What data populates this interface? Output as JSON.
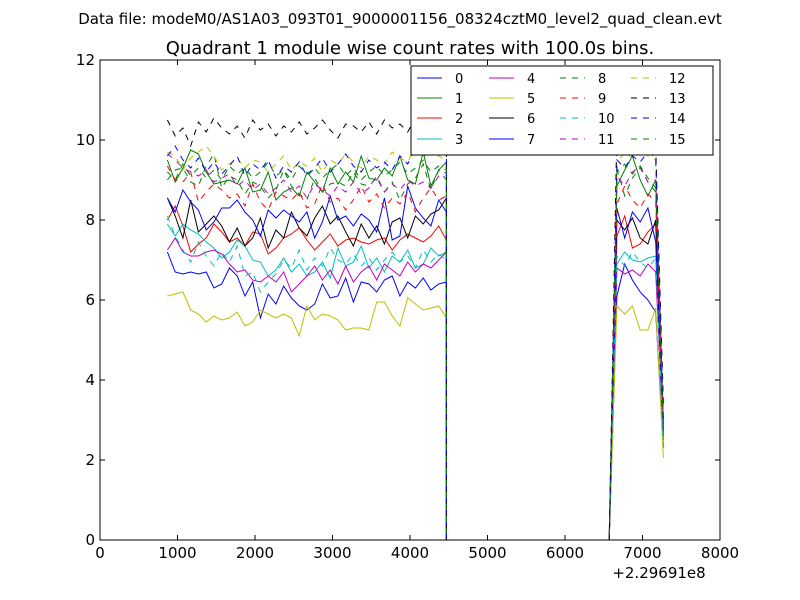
{
  "figure": {
    "suptitle": "Data file: modeM0/AS1A03_093T01_9000001156_08324cztM0_level2_quad_clean.evt"
  },
  "chart_data": {
    "type": "line",
    "title": "Quadrant 1 module wise count rates with 100.0s bins.",
    "xlabel": "",
    "ylabel": "",
    "x_offset_label": "+2.29691e8",
    "xlim": [
      0,
      8000
    ],
    "ylim": [
      0,
      12
    ],
    "xticks": [
      0,
      1000,
      2000,
      3000,
      4000,
      5000,
      6000,
      7000,
      8000
    ],
    "yticks": [
      0,
      2,
      4,
      6,
      8,
      10,
      12
    ],
    "grid": false,
    "legend": {
      "placement": "top-right",
      "columns": 4
    },
    "x_segments": [
      {
        "start": 870,
        "step": 100,
        "count": 37
      },
      {
        "start": 4470,
        "step": 100,
        "count": 22
      },
      {
        "start": 6670,
        "step": 100,
        "count": 7
      }
    ],
    "series": [
      {
        "name": "0",
        "color": "#0000ff",
        "dash": "solid",
        "seg1": [
          7.2,
          6.7,
          6.65,
          6.7,
          6.65,
          6.7,
          6.3,
          6.4,
          6.8,
          6.6,
          6.1,
          6.45,
          5.55,
          6.15,
          5.9,
          6.35,
          6.05,
          5.85,
          5.75,
          5.9,
          6.4,
          6.05,
          6.1,
          6.55,
          5.95,
          6.45,
          6.4,
          6.2,
          6.5,
          6.6,
          6.1,
          6.45,
          6.3,
          6.55,
          6.25,
          6.4,
          6.45
        ],
        "seg2": [
          6.1,
          6.9,
          6.5,
          6.2,
          6.0,
          5.7,
          2.3
        ]
      },
      {
        "name": "1",
        "color": "#008000",
        "dash": "solid",
        "seg1": [
          9.5,
          8.95,
          9.3,
          9.75,
          9.65,
          9.2,
          8.9,
          8.95,
          9.0,
          8.9,
          9.3,
          8.7,
          8.75,
          9.2,
          8.5,
          8.7,
          8.8,
          8.6,
          9.2,
          8.95,
          8.7,
          9.3,
          8.9,
          9.2,
          8.95,
          9.6,
          9.05,
          9.0,
          9.3,
          9.1,
          9.6,
          9.0,
          8.9,
          9.7,
          8.85,
          9.25,
          9.45
        ],
        "seg2": [
          8.85,
          9.25,
          9.6,
          9.0,
          8.6,
          9.0,
          3.0
        ]
      },
      {
        "name": "2",
        "color": "#ff0000",
        "dash": "solid",
        "seg1": [
          8.0,
          8.35,
          7.85,
          7.2,
          7.4,
          7.55,
          7.9,
          7.7,
          7.45,
          7.55,
          7.35,
          7.7,
          7.65,
          7.15,
          7.3,
          7.55,
          7.65,
          7.8,
          7.5,
          7.25,
          7.45,
          7.65,
          7.35,
          7.5,
          7.55,
          7.45,
          7.4,
          7.5,
          7.55,
          7.25,
          7.5,
          7.65,
          7.55,
          7.45,
          7.6,
          7.85,
          7.5
        ],
        "seg2": [
          7.6,
          8.1,
          7.3,
          7.4,
          7.7,
          7.9,
          2.5
        ]
      },
      {
        "name": "3",
        "color": "#00bfbf",
        "dash": "solid",
        "seg1": [
          7.9,
          7.6,
          7.9,
          7.75,
          7.65,
          7.45,
          7.3,
          7.05,
          7.2,
          7.5,
          7.35,
          7.0,
          6.95,
          6.6,
          6.75,
          7.05,
          6.7,
          6.9,
          6.6,
          6.7,
          6.95,
          6.55,
          7.3,
          6.85,
          6.95,
          7.35,
          6.8,
          7.05,
          6.7,
          7.1,
          6.95,
          7.25,
          6.8,
          6.9,
          7.3,
          7.1,
          7.2
        ],
        "seg2": [
          6.9,
          7.2,
          7.0,
          6.95,
          7.05,
          7.1,
          2.3
        ]
      },
      {
        "name": "4",
        "color": "#bf00bf",
        "dash": "solid",
        "seg1": [
          7.25,
          7.55,
          7.2,
          7.1,
          7.1,
          7.2,
          7.25,
          7.15,
          6.9,
          6.7,
          6.75,
          6.5,
          6.45,
          6.6,
          6.45,
          6.7,
          6.2,
          6.4,
          6.6,
          6.85,
          6.5,
          6.75,
          6.4,
          6.85,
          6.45,
          6.7,
          6.85,
          6.5,
          6.9,
          6.75,
          6.6,
          6.95,
          6.7,
          6.9,
          6.8,
          7.0,
          7.2
        ],
        "seg2": [
          6.8,
          6.65,
          6.75,
          6.6,
          6.9,
          6.7,
          2.6
        ]
      },
      {
        "name": "5",
        "color": "#bfbf00",
        "dash": "solid",
        "seg1": [
          6.1,
          6.15,
          6.2,
          5.75,
          5.65,
          5.45,
          5.6,
          5.5,
          5.55,
          5.7,
          5.35,
          5.45,
          5.75,
          5.65,
          5.55,
          5.65,
          5.55,
          5.1,
          5.85,
          5.5,
          5.65,
          5.6,
          5.5,
          5.25,
          5.3,
          5.3,
          5.25,
          5.95,
          5.95,
          5.6,
          5.35,
          6.05,
          5.9,
          5.75,
          5.8,
          5.85,
          5.55
        ],
        "seg2": [
          5.85,
          5.65,
          5.85,
          5.25,
          5.25,
          5.8,
          2.05
        ]
      },
      {
        "name": "6",
        "color": "#000000",
        "dash": "solid",
        "seg1": [
          8.55,
          8.1,
          7.55,
          8.5,
          7.7,
          7.9,
          8.1,
          7.85,
          7.45,
          7.8,
          7.35,
          7.55,
          8.05,
          7.3,
          7.75,
          7.55,
          8.2,
          7.8,
          7.6,
          8.05,
          8.35,
          7.9,
          8.1,
          7.7,
          7.35,
          7.9,
          7.55,
          7.85,
          7.4,
          7.95,
          8.05,
          7.55,
          8.1,
          7.9,
          8.15,
          8.25,
          8.55
        ],
        "seg2": [
          8.0,
          7.75,
          8.05,
          7.55,
          7.4,
          8.0,
          2.9
        ]
      },
      {
        "name": "7",
        "color": "#0000ff",
        "dash": "solid",
        "seg1": [
          8.55,
          8.2,
          8.75,
          8.45,
          8.25,
          7.75,
          7.95,
          8.3,
          8.3,
          8.5,
          8.2,
          8.0,
          7.6,
          8.25,
          8.05,
          8.25,
          8.1,
          7.95,
          8.2,
          7.55,
          7.95,
          8.6,
          8.0,
          8.1,
          7.85,
          8.15,
          8.0,
          7.7,
          8.55,
          7.5,
          7.6,
          8.85,
          8.3,
          8.05,
          7.85,
          8.5,
          8.2
        ],
        "seg2": [
          8.3,
          7.55,
          8.2,
          7.95,
          8.3,
          7.45,
          2.7
        ]
      },
      {
        "name": "8",
        "color": "#008000",
        "dash": "dashed",
        "seg1": [
          9.0,
          9.25,
          9.3,
          8.95,
          8.85,
          9.35,
          9.65,
          8.8,
          9.1,
          9.0,
          8.65,
          8.95,
          8.85,
          8.55,
          8.75,
          9.25,
          8.85,
          8.65,
          8.5,
          9.05,
          8.7,
          8.9,
          8.95,
          8.85,
          9.2,
          8.9,
          8.85,
          9.05,
          8.7,
          8.95,
          8.5,
          8.9,
          9.05,
          9.4,
          8.75,
          9.25,
          9.0
        ],
        "seg2": [
          9.3,
          8.6,
          9.05,
          9.3,
          8.95,
          8.7,
          2.7
        ]
      },
      {
        "name": "9",
        "color": "#ff0000",
        "dash": "dashed",
        "seg1": [
          9.35,
          9.0,
          8.95,
          9.2,
          8.45,
          8.7,
          8.9,
          8.75,
          8.55,
          8.65,
          8.35,
          8.9,
          8.45,
          8.25,
          8.7,
          8.6,
          8.5,
          8.7,
          8.3,
          8.4,
          8.9,
          8.45,
          8.55,
          8.25,
          8.5,
          8.85,
          8.45,
          8.65,
          8.3,
          8.55,
          8.4,
          8.7,
          8.2,
          8.55,
          8.8,
          8.5,
          8.6
        ],
        "seg2": [
          8.4,
          8.85,
          8.5,
          8.3,
          8.65,
          8.45,
          2.6
        ]
      },
      {
        "name": "10",
        "color": "#00bfbf",
        "dash": "dashed",
        "seg1": [
          8.1,
          7.6,
          7.25,
          6.95,
          7.45,
          7.1,
          6.85,
          7.2,
          6.95,
          7.35,
          6.6,
          6.7,
          6.2,
          6.45,
          6.65,
          7.0,
          6.8,
          7.25,
          6.75,
          7.05,
          6.85,
          7.3,
          7.0,
          6.9,
          7.15,
          6.85,
          7.05,
          6.75,
          7.0,
          7.2,
          6.95,
          7.1,
          6.8,
          7.25,
          6.95,
          7.15,
          7.0
        ],
        "seg2": [
          7.1,
          6.85,
          7.2,
          6.95,
          6.8,
          7.05,
          2.35
        ]
      },
      {
        "name": "11",
        "color": "#bf00bf",
        "dash": "dashed",
        "seg1": [
          9.65,
          9.5,
          9.3,
          9.2,
          9.1,
          9.25,
          8.95,
          9.05,
          9.15,
          8.85,
          9.0,
          8.75,
          8.9,
          8.65,
          8.8,
          9.0,
          8.7,
          8.85,
          8.55,
          8.9,
          8.75,
          8.6,
          8.85,
          8.7,
          8.95,
          8.65,
          8.8,
          9.1,
          8.7,
          8.9,
          8.75,
          9.0,
          8.85,
          8.95,
          8.8,
          9.1,
          9.2
        ],
        "seg2": [
          9.1,
          8.85,
          9.2,
          9.35,
          8.95,
          9.0,
          2.9
        ]
      },
      {
        "name": "12",
        "color": "#bfbf00",
        "dash": "dashed",
        "seg1": [
          9.7,
          9.6,
          9.25,
          9.55,
          9.7,
          9.85,
          9.6,
          9.25,
          9.4,
          9.55,
          9.3,
          9.5,
          9.45,
          9.2,
          9.4,
          9.6,
          9.25,
          9.45,
          9.35,
          9.55,
          9.2,
          9.5,
          9.4,
          9.65,
          9.45,
          9.3,
          9.6,
          9.5,
          9.4,
          9.7,
          9.55,
          9.45,
          9.8,
          10.2,
          9.7,
          9.6,
          9.5
        ],
        "seg2": [
          9.4,
          9.7,
          9.55,
          9.8,
          9.6,
          9.5,
          3.2
        ]
      },
      {
        "name": "13",
        "color": "#000000",
        "dash": "dashed",
        "seg1": [
          10.5,
          10.1,
          10.3,
          9.85,
          10.45,
          10.2,
          10.55,
          10.3,
          10.15,
          10.35,
          10.05,
          10.5,
          10.25,
          10.4,
          10.1,
          10.35,
          10.2,
          10.45,
          10.15,
          10.3,
          10.5,
          10.25,
          10.05,
          10.4,
          10.35,
          10.2,
          10.45,
          10.15,
          10.5,
          10.3,
          10.4,
          10.2,
          10.55,
          10.3,
          10.75,
          10.5,
          10.35
        ],
        "seg2": [
          10.3,
          9.6,
          10.3,
          10.2,
          10.25,
          9.8,
          3.4
        ]
      },
      {
        "name": "14",
        "color": "#0000ff",
        "dash": "dashed",
        "seg1": [
          9.6,
          9.85,
          9.5,
          9.3,
          9.55,
          9.2,
          9.45,
          9.15,
          9.35,
          9.6,
          9.1,
          9.4,
          9.25,
          9.5,
          9.05,
          9.35,
          9.2,
          9.45,
          9.1,
          9.3,
          9.55,
          9.2,
          9.4,
          9.65,
          9.35,
          9.2,
          9.5,
          9.3,
          9.45,
          9.25,
          9.6,
          9.4,
          9.8,
          9.55,
          9.9,
          9.7,
          9.6
        ],
        "seg2": [
          9.5,
          9.3,
          9.6,
          9.45,
          9.7,
          9.55,
          3.0
        ]
      },
      {
        "name": "15",
        "color": "#008000",
        "dash": "dashed",
        "seg1": [
          9.2,
          9.0,
          9.4,
          9.1,
          9.3,
          9.05,
          9.25,
          9.0,
          9.35,
          9.15,
          9.3,
          9.05,
          9.2,
          9.45,
          9.1,
          9.25,
          9.0,
          9.35,
          9.15,
          9.3,
          9.05,
          9.25,
          9.4,
          9.1,
          9.3,
          9.0,
          9.2,
          9.35,
          9.1,
          9.25,
          9.45,
          9.15,
          9.3,
          9.5,
          9.2,
          9.35,
          9.25
        ],
        "seg2": [
          9.2,
          9.4,
          9.15,
          9.35,
          9.05,
          8.8,
          2.8
        ]
      }
    ]
  }
}
